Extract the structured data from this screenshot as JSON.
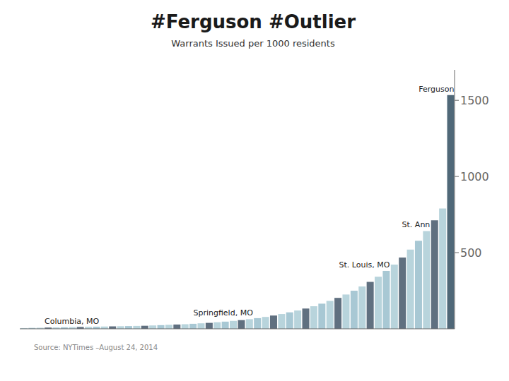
{
  "chart_data": {
    "type": "bar",
    "title": "#Ferguson #Outlier",
    "subtitle": "Warrants Issued per 1000 residents",
    "source": "Source: NYTimes –August 24, 2014",
    "categories": [
      null,
      null,
      null,
      null,
      null,
      null,
      null,
      null,
      null,
      null,
      null,
      null,
      null,
      null,
      null,
      null,
      null,
      null,
      null,
      null,
      null,
      null,
      null,
      null,
      null,
      null,
      null,
      null,
      null,
      null,
      null,
      null,
      null,
      null,
      null,
      null,
      null,
      null,
      null,
      null,
      null,
      null,
      null,
      null,
      null,
      null,
      null,
      null,
      null,
      null,
      null,
      null,
      null,
      null
    ],
    "values": [
      5,
      6,
      7,
      8,
      9,
      10,
      11,
      12,
      13,
      14,
      15,
      16,
      17,
      18,
      19,
      20,
      22,
      24,
      26,
      28,
      30,
      33,
      36,
      39,
      43,
      47,
      52,
      57,
      63,
      70,
      78,
      87,
      97,
      108,
      120,
      133,
      148,
      165,
      183,
      203,
      225,
      250,
      278,
      308,
      342,
      380,
      422,
      468,
      520,
      578,
      642,
      712,
      790,
      1534
    ],
    "colors": [
      "#b8d4dc",
      "#a8c8d4",
      "#b8d4dc",
      "#607080",
      "#b8d4dc",
      "#a8c8d4",
      "#b8d4dc",
      "#607080",
      "#b8d4dc",
      "#a8c8d4",
      "#b8d4dc",
      "#607080",
      "#b8d4dc",
      "#a8c8d4",
      "#b8d4dc",
      "#607080",
      "#b8d4dc",
      "#a8c8d4",
      "#b8d4dc",
      "#607080",
      "#b8d4dc",
      "#a8c8d4",
      "#b8d4dc",
      "#607080",
      "#b8d4dc",
      "#a8c8d4",
      "#b8d4dc",
      "#607080",
      "#b8d4dc",
      "#a8c8d4",
      "#b8d4dc",
      "#607080",
      "#b8d4dc",
      "#a8c8d4",
      "#b8d4dc",
      "#607080",
      "#b8d4dc",
      "#a8c8d4",
      "#b8d4dc",
      "#607080",
      "#b8d4dc",
      "#a8c8d4",
      "#b8d4dc",
      "#607080",
      "#b8d4dc",
      "#a8c8d4",
      "#b8d4dc",
      "#607080",
      "#b8d4dc",
      "#a8c8d4",
      "#b8d4dc",
      "#607080",
      "#b8d4dc",
      "#506878"
    ],
    "ylim": [
      0,
      1700
    ],
    "yticks": [
      500,
      1000,
      1500
    ],
    "grid": false,
    "tick_labels": "y",
    "annotations": [
      {
        "text": "Columbia, MO",
        "index": 3
      },
      {
        "text": "Springfield, MO",
        "index": 28
      },
      {
        "text": "St. Louis, MO",
        "index": 45
      },
      {
        "text": "St. Ann",
        "index": 50
      },
      {
        "text": "Ferguson",
        "index": 53
      }
    ]
  }
}
